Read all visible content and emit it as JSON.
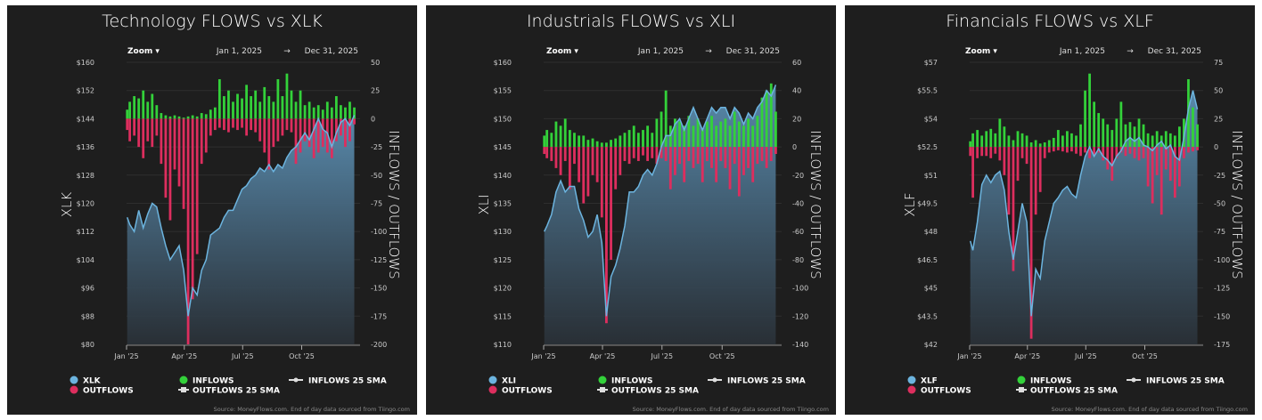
{
  "source_note": "Source: MoneyFlows.com. End of day data sourced from Tiingo.com",
  "zoom_label": "Zoom ▾",
  "date_from": "Jan 1, 2025",
  "date_arrow": "→",
  "date_to": "Dec 31, 2025",
  "colors": {
    "price_line": "#6cb4df",
    "inflows": "#33d13a",
    "outflows": "#dd2e5e",
    "background": "#1e1e1e",
    "text": "#ffffff"
  },
  "chart_data": [
    {
      "type": "bar+line",
      "title": "Technology FLOWS vs XLK",
      "ylabel": "XLK",
      "y2label": "INFLOWS / OUTFLOWS",
      "ylim": [
        80,
        160
      ],
      "y2lim": [
        -200,
        50
      ],
      "yticks": [
        "$160",
        "$152",
        "$144",
        "$136",
        "$128",
        "$120",
        "$112",
        "$104",
        "$96",
        "$88",
        "$80"
      ],
      "y2ticks": [
        "50",
        "25",
        "0",
        "-25",
        "-50",
        "-75",
        "-100",
        "-125",
        "-150",
        "-175",
        "-200"
      ],
      "xticks": [
        "Jan '25",
        "Apr '25",
        "Jul '25",
        "Oct '25"
      ],
      "legend": [
        "XLK",
        "OUTFLOWS",
        "INFLOWS",
        "OUTFLOWS 25 SMA",
        "INFLOWS 25 SMA"
      ],
      "legend_position": "bottom",
      "grid": true,
      "columns": [
        "date",
        "price",
        "inflows",
        "outflows"
      ],
      "rows": [
        [
          "2025-01-02",
          116,
          8,
          -10
        ],
        [
          "2025-01-06",
          114,
          15,
          -20
        ],
        [
          "2025-01-13",
          112,
          20,
          -15
        ],
        [
          "2025-01-20",
          118,
          18,
          -25
        ],
        [
          "2025-01-27",
          113,
          25,
          -35
        ],
        [
          "2025-02-03",
          117,
          15,
          -20
        ],
        [
          "2025-02-10",
          120,
          22,
          -25
        ],
        [
          "2025-02-17",
          119,
          12,
          -15
        ],
        [
          "2025-02-24",
          113,
          5,
          -40
        ],
        [
          "2025-03-03",
          108,
          3,
          -70
        ],
        [
          "2025-03-10",
          104,
          2,
          -90
        ],
        [
          "2025-03-17",
          106,
          3,
          -45
        ],
        [
          "2025-03-24",
          108,
          2,
          -60
        ],
        [
          "2025-03-31",
          101,
          1,
          -80
        ],
        [
          "2025-04-07",
          88,
          2,
          -200
        ],
        [
          "2025-04-14",
          96,
          3,
          -160
        ],
        [
          "2025-04-21",
          94,
          2,
          -120
        ],
        [
          "2025-04-28",
          101,
          5,
          -40
        ],
        [
          "2025-05-05",
          104,
          4,
          -30
        ],
        [
          "2025-05-12",
          111,
          8,
          -15
        ],
        [
          "2025-05-19",
          112,
          10,
          -10
        ],
        [
          "2025-05-26",
          113,
          35,
          -8
        ],
        [
          "2025-06-02",
          116,
          20,
          -10
        ],
        [
          "2025-06-09",
          118,
          25,
          -12
        ],
        [
          "2025-06-16",
          118,
          15,
          -8
        ],
        [
          "2025-06-23",
          121,
          22,
          -10
        ],
        [
          "2025-06-30",
          124,
          18,
          -8
        ],
        [
          "2025-07-07",
          125,
          30,
          -15
        ],
        [
          "2025-07-14",
          127,
          20,
          -10
        ],
        [
          "2025-07-21",
          128,
          25,
          -12
        ],
        [
          "2025-07-28",
          130,
          15,
          -20
        ],
        [
          "2025-08-04",
          129,
          28,
          -30
        ],
        [
          "2025-08-11",
          131,
          20,
          -45
        ],
        [
          "2025-08-18",
          129,
          15,
          -25
        ],
        [
          "2025-08-25",
          131,
          35,
          -20
        ],
        [
          "2025-09-01",
          130,
          20,
          -15
        ],
        [
          "2025-09-08",
          133,
          40,
          -10
        ],
        [
          "2025-09-15",
          135,
          25,
          -12
        ],
        [
          "2025-09-22",
          136,
          15,
          -40
        ],
        [
          "2025-09-29",
          138,
          25,
          -30
        ],
        [
          "2025-10-06",
          140,
          12,
          -20
        ],
        [
          "2025-10-13",
          138,
          15,
          -25
        ],
        [
          "2025-10-20",
          141,
          10,
          -35
        ],
        [
          "2025-10-27",
          144,
          12,
          -30
        ],
        [
          "2025-11-03",
          141,
          8,
          -25
        ],
        [
          "2025-11-10",
          140,
          15,
          -30
        ],
        [
          "2025-11-17",
          136,
          10,
          -35
        ],
        [
          "2025-11-24",
          140,
          20,
          -20
        ],
        [
          "2025-12-01",
          143,
          12,
          -15
        ],
        [
          "2025-12-08",
          144,
          10,
          -25
        ],
        [
          "2025-12-15",
          142,
          15,
          -20
        ],
        [
          "2025-12-22",
          145,
          10,
          -5
        ]
      ]
    },
    {
      "type": "bar+line",
      "title": "Industrials FLOWS vs XLI",
      "ylabel": "XLI",
      "y2label": "INFLOWS / OUTFLOWS",
      "ylim": [
        110,
        160
      ],
      "y2lim": [
        -140,
        60
      ],
      "yticks": [
        "$160",
        "$155",
        "$150",
        "$145",
        "$140",
        "$135",
        "$130",
        "$125",
        "$120",
        "$115",
        "$110"
      ],
      "y2ticks": [
        "60",
        "40",
        "20",
        "0",
        "-20",
        "-40",
        "-60",
        "-80",
        "-100",
        "-120",
        "-140"
      ],
      "xticks": [
        "Jan '25",
        "Apr '25",
        "Jul '25",
        "Oct '25"
      ],
      "legend": [
        "XLI",
        "OUTFLOWS",
        "INFLOWS",
        "OUTFLOWS 25 SMA",
        "INFLOWS 25 SMA"
      ],
      "legend_position": "bottom",
      "grid": true,
      "columns": [
        "date",
        "price",
        "inflows",
        "outflows"
      ],
      "rows": [
        [
          "2025-01-02",
          130,
          8,
          -5
        ],
        [
          "2025-01-06",
          131,
          12,
          -8
        ],
        [
          "2025-01-13",
          133,
          10,
          -10
        ],
        [
          "2025-01-20",
          137,
          18,
          -15
        ],
        [
          "2025-01-27",
          139,
          15,
          -20
        ],
        [
          "2025-02-03",
          137,
          20,
          -10
        ],
        [
          "2025-02-10",
          138,
          12,
          -30
        ],
        [
          "2025-02-17",
          138,
          10,
          -12
        ],
        [
          "2025-02-24",
          134,
          8,
          -25
        ],
        [
          "2025-03-03",
          132,
          8,
          -40
        ],
        [
          "2025-03-10",
          129,
          5,
          -35
        ],
        [
          "2025-03-17",
          130,
          6,
          -20
        ],
        [
          "2025-03-24",
          133,
          4,
          -25
        ],
        [
          "2025-03-31",
          128,
          3,
          -50
        ],
        [
          "2025-04-07",
          115,
          3,
          -125
        ],
        [
          "2025-04-14",
          122,
          5,
          -80
        ],
        [
          "2025-04-21",
          124,
          6,
          -30
        ],
        [
          "2025-04-28",
          127,
          8,
          -20
        ],
        [
          "2025-05-05",
          131,
          10,
          -10
        ],
        [
          "2025-05-12",
          137,
          12,
          -12
        ],
        [
          "2025-05-19",
          137,
          15,
          -8
        ],
        [
          "2025-05-26",
          138,
          10,
          -10
        ],
        [
          "2025-06-02",
          140,
          12,
          -6
        ],
        [
          "2025-06-09",
          141,
          15,
          -10
        ],
        [
          "2025-06-16",
          140,
          10,
          -8
        ],
        [
          "2025-06-23",
          142,
          20,
          -12
        ],
        [
          "2025-06-30",
          145,
          25,
          -8
        ],
        [
          "2025-07-07",
          147,
          40,
          -10
        ],
        [
          "2025-07-14",
          147,
          15,
          -30
        ],
        [
          "2025-07-21",
          149,
          20,
          -20
        ],
        [
          "2025-07-28",
          150,
          18,
          -12
        ],
        [
          "2025-08-04",
          148,
          15,
          -25
        ],
        [
          "2025-08-11",
          150,
          22,
          -10
        ],
        [
          "2025-08-18",
          152,
          15,
          -15
        ],
        [
          "2025-08-25",
          150,
          20,
          -12
        ],
        [
          "2025-09-01",
          148,
          12,
          -25
        ],
        [
          "2025-09-08",
          150,
          18,
          -10
        ],
        [
          "2025-09-15",
          152,
          22,
          -15
        ],
        [
          "2025-09-22",
          151,
          15,
          -25
        ],
        [
          "2025-09-29",
          152,
          18,
          -10
        ],
        [
          "2025-10-06",
          152,
          20,
          -15
        ],
        [
          "2025-10-13",
          150,
          15,
          -30
        ],
        [
          "2025-10-20",
          152,
          25,
          -12
        ],
        [
          "2025-10-27",
          151,
          18,
          -35
        ],
        [
          "2025-11-03",
          149,
          15,
          -20
        ],
        [
          "2025-11-10",
          151,
          20,
          -15
        ],
        [
          "2025-11-17",
          150,
          15,
          -25
        ],
        [
          "2025-11-24",
          152,
          22,
          -12
        ],
        [
          "2025-12-01",
          153,
          35,
          -10
        ],
        [
          "2025-12-08",
          155,
          40,
          -15
        ],
        [
          "2025-12-15",
          154,
          45,
          -10
        ],
        [
          "2025-12-22",
          156,
          25,
          -5
        ]
      ]
    },
    {
      "type": "bar+line",
      "title": "Financials FLOWS vs XLF",
      "ylabel": "XLF",
      "y2label": "INFLOWS / OUTFLOWS",
      "ylim": [
        42,
        57
      ],
      "y2lim": [
        -175,
        75
      ],
      "yticks": [
        "$57",
        "$55.5",
        "$54",
        "$52.5",
        "$51",
        "$49.5",
        "$48",
        "$46.5",
        "$45",
        "$43.5",
        "$42"
      ],
      "y2ticks": [
        "75",
        "50",
        "25",
        "0",
        "-25",
        "-50",
        "-75",
        "-100",
        "-125",
        "-150",
        "-175"
      ],
      "xticks": [
        "Jan '25",
        "Apr '25",
        "Jul '25",
        "Oct '25"
      ],
      "legend": [
        "XLF",
        "OUTFLOWS",
        "INFLOWS",
        "OUTFLOWS 25 SMA",
        "INFLOWS 25 SMA"
      ],
      "legend_position": "bottom",
      "grid": true,
      "columns": [
        "date",
        "price",
        "inflows",
        "outflows"
      ],
      "rows": [
        [
          "2025-01-02",
          47.5,
          5,
          -8
        ],
        [
          "2025-01-06",
          47,
          12,
          -45
        ],
        [
          "2025-01-13",
          48.5,
          15,
          -10
        ],
        [
          "2025-01-20",
          50.5,
          10,
          -8
        ],
        [
          "2025-01-27",
          51,
          14,
          -8
        ],
        [
          "2025-02-03",
          50.6,
          16,
          -10
        ],
        [
          "2025-02-10",
          51,
          12,
          -6
        ],
        [
          "2025-02-17",
          51.2,
          25,
          -12
        ],
        [
          "2025-02-24",
          50.2,
          18,
          -25
        ],
        [
          "2025-03-03",
          48,
          10,
          -60
        ],
        [
          "2025-03-10",
          46.5,
          6,
          -110
        ],
        [
          "2025-03-17",
          48,
          14,
          -30
        ],
        [
          "2025-03-24",
          49.5,
          12,
          -10
        ],
        [
          "2025-03-31",
          48.5,
          10,
          -15
        ],
        [
          "2025-04-07",
          43.5,
          4,
          -170
        ],
        [
          "2025-04-14",
          46,
          6,
          -60
        ],
        [
          "2025-04-21",
          45.5,
          3,
          -40
        ],
        [
          "2025-04-28",
          47.5,
          4,
          -10
        ],
        [
          "2025-05-05",
          48.5,
          6,
          -5
        ],
        [
          "2025-05-12",
          49.5,
          8,
          -4
        ],
        [
          "2025-05-19",
          49.8,
          15,
          -3
        ],
        [
          "2025-05-26",
          50.2,
          10,
          -4
        ],
        [
          "2025-06-02",
          50.4,
          14,
          -5
        ],
        [
          "2025-06-09",
          50,
          12,
          -4
        ],
        [
          "2025-06-16",
          49.8,
          10,
          -6
        ],
        [
          "2025-06-23",
          51,
          20,
          -8
        ],
        [
          "2025-06-30",
          52,
          50,
          -5
        ],
        [
          "2025-07-07",
          52.5,
          65,
          -10
        ],
        [
          "2025-07-14",
          52,
          40,
          -8
        ],
        [
          "2025-07-21",
          52.4,
          30,
          -5
        ],
        [
          "2025-07-28",
          52,
          25,
          -12
        ],
        [
          "2025-08-04",
          51.8,
          20,
          -20
        ],
        [
          "2025-08-11",
          51.5,
          15,
          -30
        ],
        [
          "2025-08-18",
          52,
          25,
          -10
        ],
        [
          "2025-08-25",
          52.3,
          40,
          -5
        ],
        [
          "2025-09-01",
          52.8,
          20,
          -8
        ],
        [
          "2025-09-08",
          53,
          22,
          -6
        ],
        [
          "2025-09-15",
          52.8,
          18,
          -10
        ],
        [
          "2025-09-22",
          53,
          25,
          -12
        ],
        [
          "2025-09-29",
          52.6,
          20,
          -10
        ],
        [
          "2025-10-06",
          52.5,
          12,
          -35
        ],
        [
          "2025-10-13",
          52.3,
          10,
          -50
        ],
        [
          "2025-10-20",
          52.6,
          14,
          -25
        ],
        [
          "2025-10-27",
          52.8,
          10,
          -60
        ],
        [
          "2025-11-03",
          52.4,
          14,
          -20
        ],
        [
          "2025-11-10",
          52.6,
          12,
          -30
        ],
        [
          "2025-11-17",
          52,
          10,
          -45
        ],
        [
          "2025-11-24",
          51.8,
          18,
          -35
        ],
        [
          "2025-12-01",
          53,
          25,
          -10
        ],
        [
          "2025-12-08",
          54.5,
          60,
          -5
        ],
        [
          "2025-12-15",
          55.5,
          35,
          -4
        ],
        [
          "2025-12-22",
          54.5,
          20,
          -3
        ]
      ]
    }
  ]
}
